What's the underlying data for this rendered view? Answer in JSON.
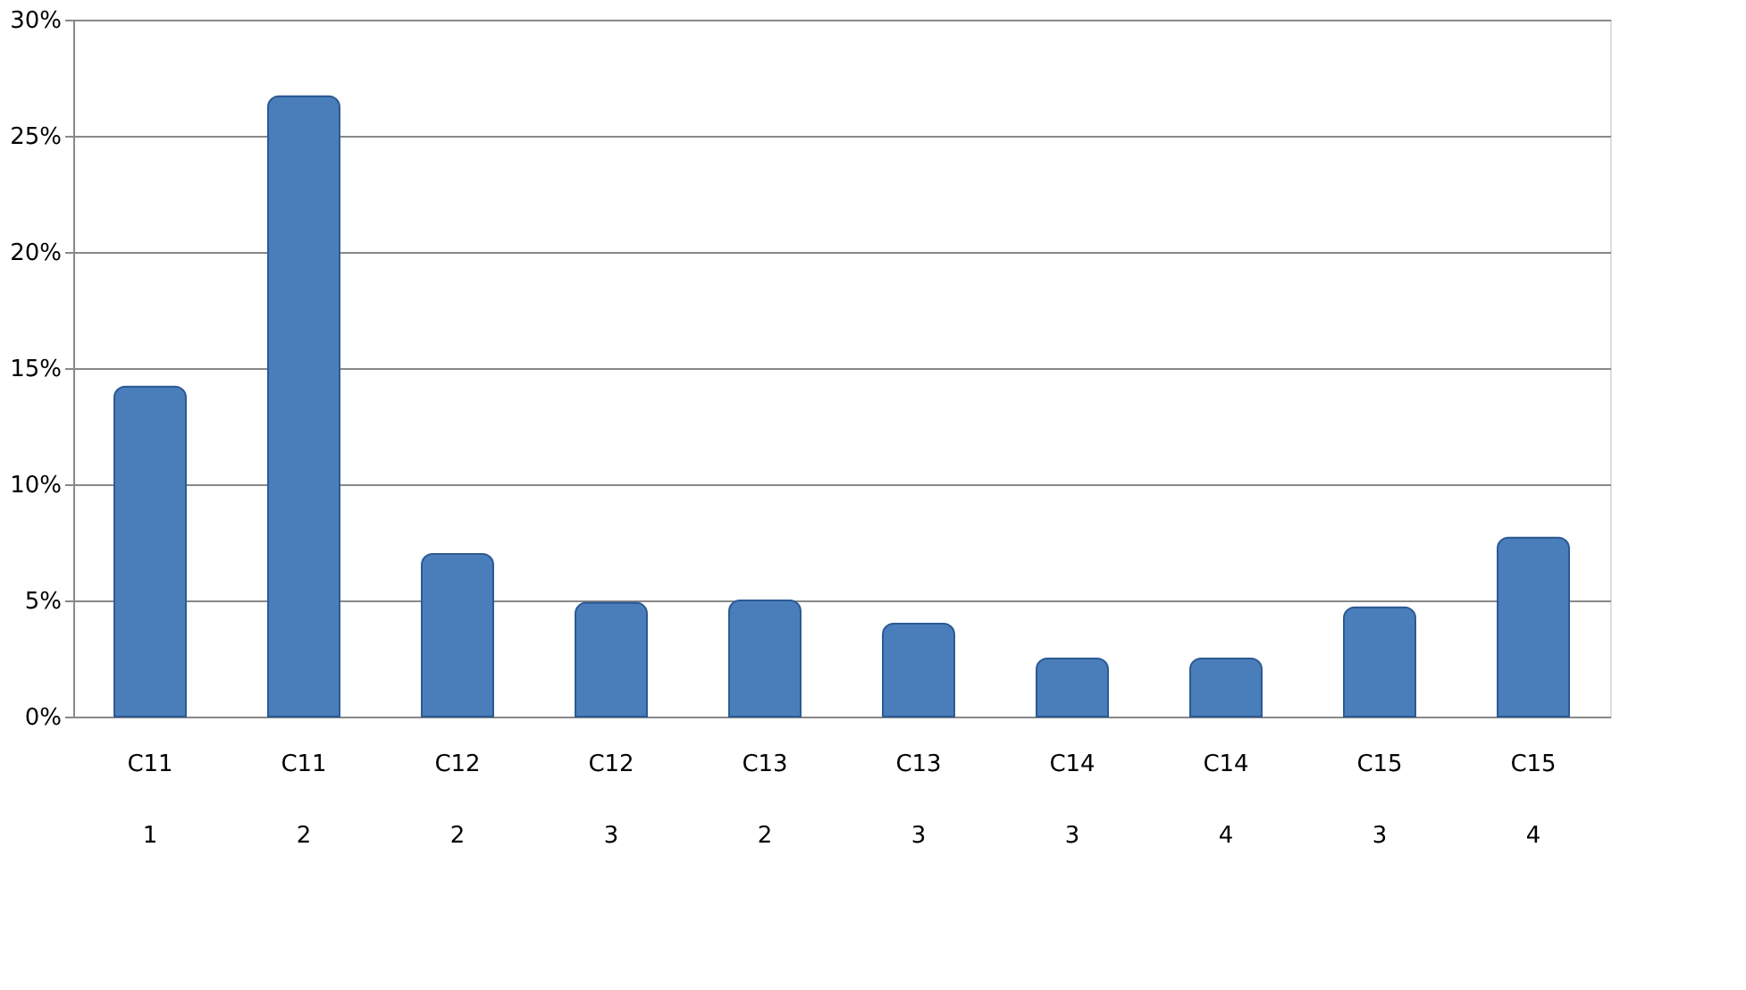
{
  "chart_data": {
    "type": "bar",
    "categories": [
      "C11 1",
      "C11 2",
      "C12 2",
      "C12 3",
      "C13 2",
      "C13 3",
      "C14 3",
      "C14 4",
      "C15 3",
      "C15 4"
    ],
    "values": [
      14.2,
      26.7,
      7.0,
      4.9,
      5.0,
      4.0,
      2.5,
      2.5,
      4.7,
      7.7
    ],
    "color": "#4a7ebb",
    "ylim": [
      0,
      30
    ],
    "yticks": [
      {
        "value": 0,
        "label": "0%"
      },
      {
        "value": 5,
        "label": "5%"
      },
      {
        "value": 10,
        "label": "10%"
      },
      {
        "value": 15,
        "label": "15%"
      },
      {
        "value": 20,
        "label": "20%"
      },
      {
        "value": 25,
        "label": "25%"
      },
      {
        "value": 30,
        "label": "30%"
      }
    ],
    "grid": "y"
  }
}
